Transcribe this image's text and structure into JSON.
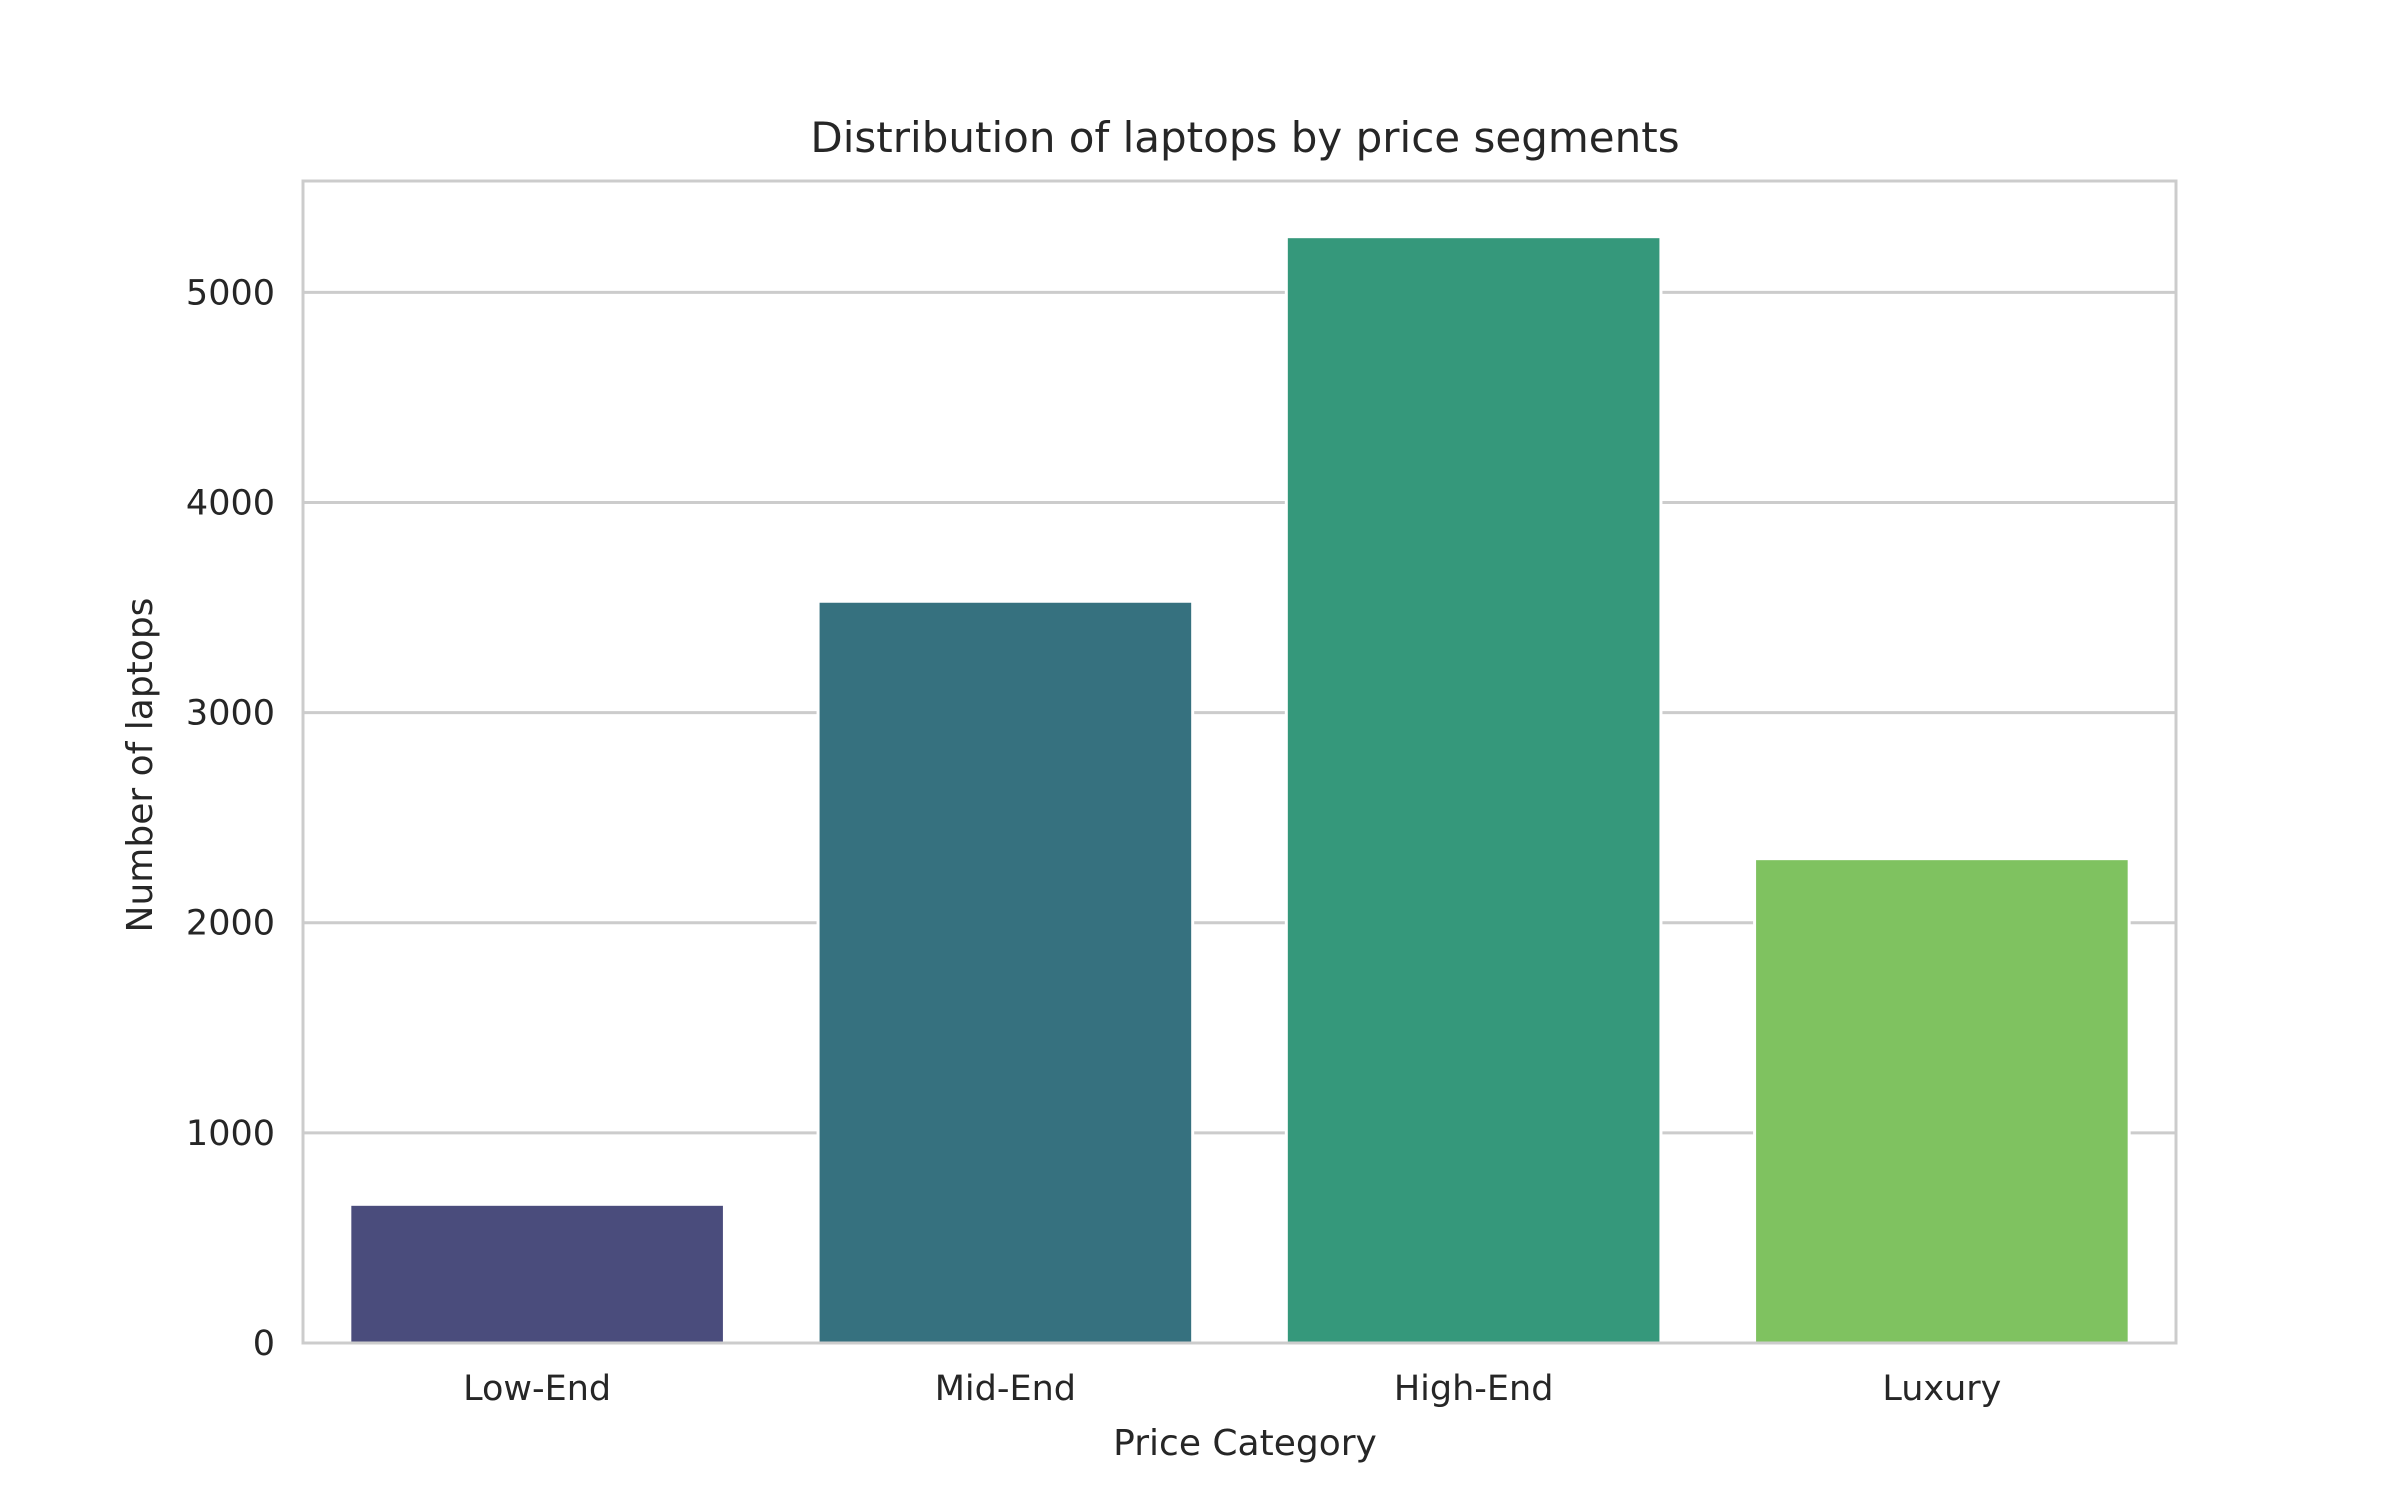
{
  "chart_data": {
    "type": "bar",
    "title": "Distribution of laptops by price segments",
    "xlabel": "Price Category",
    "ylabel": "Number of laptops",
    "categories": [
      "Low-End",
      "Mid-End",
      "High-End",
      "Luxury"
    ],
    "values": [
      660,
      3530,
      5265,
      2305
    ],
    "colors": [
      "#4a4c7c",
      "#36717f",
      "#35987b",
      "#7fc260"
    ],
    "ylim": [
      0,
      5530
    ],
    "yticks": [
      0,
      1000,
      2000,
      3000,
      4000,
      5000
    ],
    "ytick_labels": [
      "0",
      "1000",
      "2000",
      "3000",
      "4000",
      "5000"
    ],
    "grid": true,
    "grid_axis": "y",
    "grid_color": "#cccccc",
    "frame_color": "#cccccc"
  }
}
